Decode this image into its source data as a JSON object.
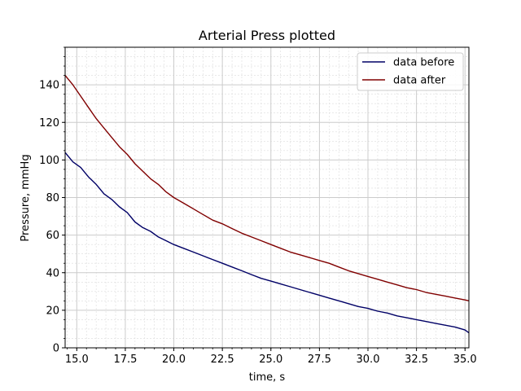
{
  "chart_data": {
    "type": "line",
    "title": "Arterial Press plotted",
    "xlabel": "time, s",
    "ylabel": "Pressure, mmHg",
    "xlim": [
      14.4,
      35.2
    ],
    "ylim": [
      0,
      160
    ],
    "xticks": [
      15.0,
      17.5,
      20.0,
      22.5,
      25.0,
      27.5,
      30.0,
      32.5,
      35.0
    ],
    "xtick_labels": [
      "15.0",
      "17.5",
      "20.0",
      "22.5",
      "25.0",
      "27.5",
      "30.0",
      "32.5",
      "35.0"
    ],
    "yticks": [
      0,
      20,
      40,
      60,
      80,
      100,
      120,
      140
    ],
    "ytick_labels": [
      "0",
      "20",
      "40",
      "60",
      "80",
      "100",
      "120",
      "140"
    ],
    "grid": true,
    "minor_grid": true,
    "legend": "top-right",
    "series": [
      {
        "name": "data before",
        "color": "#000066",
        "x": [
          14.4,
          14.8,
          15.2,
          15.6,
          16.0,
          16.4,
          16.8,
          17.2,
          17.6,
          18.0,
          18.4,
          18.8,
          19.2,
          19.6,
          20.0,
          20.5,
          21.0,
          21.5,
          22.0,
          22.5,
          23.0,
          23.5,
          24.0,
          24.5,
          25.0,
          25.5,
          26.0,
          26.5,
          27.0,
          27.5,
          28.0,
          28.5,
          29.0,
          29.5,
          30.0,
          30.5,
          31.0,
          31.5,
          32.0,
          32.5,
          33.0,
          33.5,
          34.0,
          34.5,
          35.0,
          35.2
        ],
        "y": [
          104,
          99,
          96,
          91,
          87,
          82,
          79,
          75,
          72,
          67,
          64,
          62,
          59,
          57,
          55,
          53,
          51,
          49,
          47,
          45,
          43,
          41,
          39,
          37,
          35.5,
          34,
          32.5,
          31,
          29.5,
          28,
          26.5,
          25,
          23.5,
          22,
          21,
          19.5,
          18.5,
          17,
          16,
          15,
          14,
          13,
          12,
          11,
          9.5,
          8
        ]
      },
      {
        "name": "data after",
        "color": "#800000",
        "x": [
          14.4,
          14.8,
          15.2,
          15.6,
          16.0,
          16.4,
          16.8,
          17.2,
          17.6,
          18.0,
          18.4,
          18.8,
          19.2,
          19.6,
          20.0,
          20.5,
          21.0,
          21.5,
          22.0,
          22.5,
          23.0,
          23.5,
          24.0,
          24.5,
          25.0,
          25.5,
          26.0,
          26.5,
          27.0,
          27.5,
          28.0,
          28.5,
          29.0,
          29.5,
          30.0,
          30.5,
          31.0,
          31.5,
          32.0,
          32.5,
          33.0,
          33.5,
          34.0,
          34.5,
          35.0,
          35.2
        ],
        "y": [
          145,
          140,
          134,
          128,
          122,
          117,
          112,
          107,
          103,
          98,
          94,
          90,
          87,
          83,
          80,
          77,
          74,
          71,
          68,
          66,
          63.5,
          61,
          59,
          57,
          55,
          53,
          51,
          49.5,
          48,
          46.5,
          45,
          43,
          41,
          39.5,
          38,
          36.5,
          35,
          33.5,
          32,
          31,
          29.5,
          28.5,
          27.5,
          26.5,
          25.5,
          25
        ]
      }
    ]
  }
}
